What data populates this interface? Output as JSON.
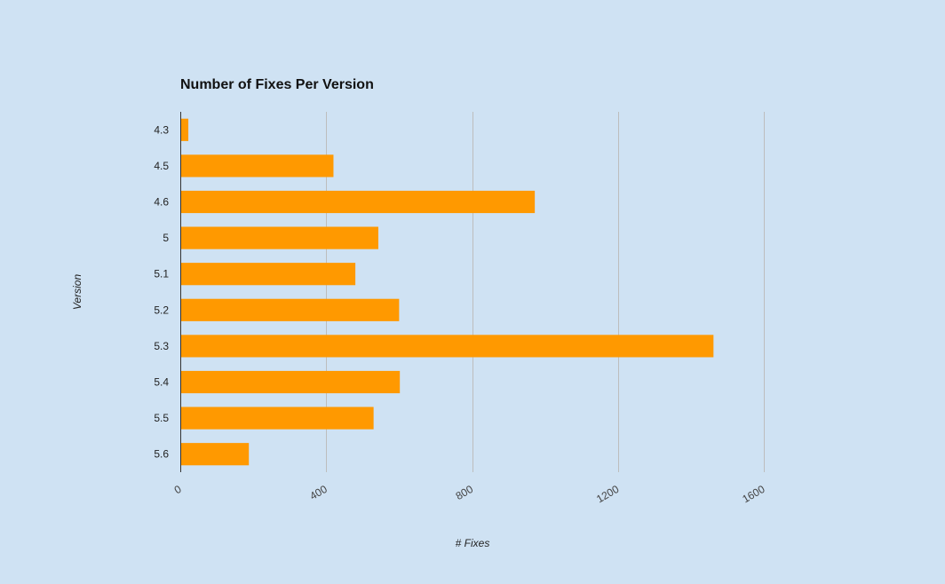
{
  "chart_data": {
    "type": "bar",
    "orientation": "horizontal",
    "title": "Number of Fixes Per Version",
    "xlabel": "# Fixes",
    "ylabel": "Version",
    "categories": [
      "4.3",
      "4.5",
      "4.6",
      "5",
      "5.1",
      "5.2",
      "5.3",
      "5.4",
      "5.5",
      "5.6"
    ],
    "values": [
      22,
      420,
      972,
      543,
      480,
      600,
      1462,
      602,
      530,
      188
    ],
    "xlim": [
      0,
      1600
    ],
    "xticks": [
      "0",
      "400",
      "800",
      "1200",
      "1600"
    ],
    "grid": true,
    "legend": "none",
    "colors": {
      "bar": "#ff9900",
      "background": "#cfe2f3",
      "grid": "#bdbdbd",
      "axis": "#333333"
    }
  }
}
